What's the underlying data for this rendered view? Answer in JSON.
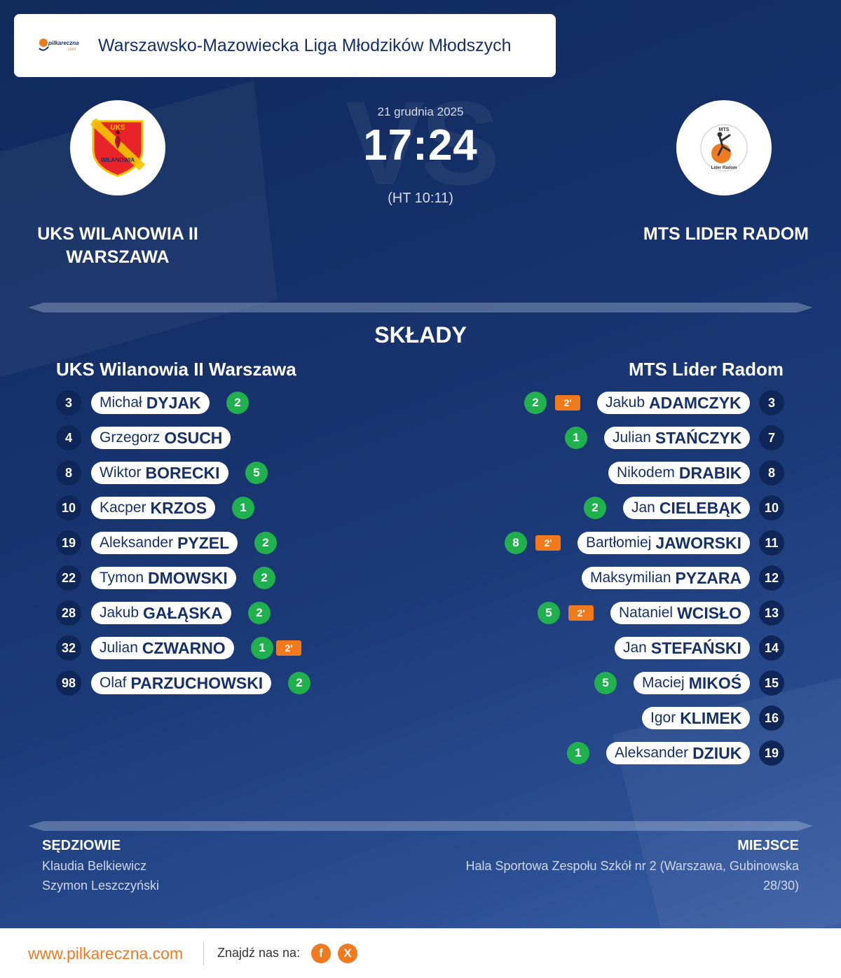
{
  "header": {
    "logo_text": "pilkareczna.com",
    "league": "Warszawsko-Mazowiecka Liga Młodzików Młodszych"
  },
  "match": {
    "date": "21 grudnia 2025",
    "score": "17:24",
    "halftime": "(HT 10:11)",
    "bg_vs": "VS"
  },
  "home": {
    "name_line1": "UKS WILANOWIA II",
    "name_line2": "WARSZAWA",
    "logo_text_top": "UKS",
    "logo_text_bottom": "WILANOWIA",
    "squad_title": "UKS Wilanowia II Warszawa",
    "players": [
      {
        "number": "3",
        "first": "Michał",
        "last": "DYJAK",
        "goals": "2",
        "penalty": ""
      },
      {
        "number": "4",
        "first": "Grzegorz",
        "last": "OSUCH",
        "goals": "",
        "penalty": ""
      },
      {
        "number": "8",
        "first": "Wiktor",
        "last": "BORECKI",
        "goals": "5",
        "penalty": ""
      },
      {
        "number": "10",
        "first": "Kacper",
        "last": "KRZOS",
        "goals": "1",
        "penalty": ""
      },
      {
        "number": "19",
        "first": "Aleksander",
        "last": "PYZEL",
        "goals": "2",
        "penalty": ""
      },
      {
        "number": "22",
        "first": "Tymon",
        "last": "DMOWSKI",
        "goals": "2",
        "penalty": ""
      },
      {
        "number": "28",
        "first": "Jakub",
        "last": "GAŁĄSKA",
        "goals": "2",
        "penalty": ""
      },
      {
        "number": "32",
        "first": "Julian",
        "last": "CZWARNO",
        "goals": "1",
        "penalty": "2'"
      },
      {
        "number": "98",
        "first": "Olaf",
        "last": "PARZUCHOWSKI",
        "goals": "2",
        "penalty": ""
      }
    ]
  },
  "away": {
    "name": "MTS LIDER RADOM",
    "logo_text_top": "MTS",
    "logo_text_bottom": "Lider Radom",
    "squad_title": "MTS Lider Radom",
    "players": [
      {
        "number": "3",
        "first": "Jakub",
        "last": "ADAMCZYK",
        "goals": "2",
        "penalty": "2'"
      },
      {
        "number": "7",
        "first": "Julian",
        "last": "STAŃCZYK",
        "goals": "1",
        "penalty": ""
      },
      {
        "number": "8",
        "first": "Nikodem",
        "last": "DRABIK",
        "goals": "",
        "penalty": ""
      },
      {
        "number": "10",
        "first": "Jan",
        "last": "CIELEBĄK",
        "goals": "2",
        "penalty": ""
      },
      {
        "number": "11",
        "first": "Bartłomiej",
        "last": "JAWORSKI",
        "goals": "8",
        "penalty": "2'"
      },
      {
        "number": "12",
        "first": "Maksymilian",
        "last": "PYZARA",
        "goals": "",
        "penalty": ""
      },
      {
        "number": "13",
        "first": "Nataniel",
        "last": "WCISŁO",
        "goals": "5",
        "penalty": "2'"
      },
      {
        "number": "14",
        "first": "Jan",
        "last": "STEFAŃSKI",
        "goals": "",
        "penalty": ""
      },
      {
        "number": "15",
        "first": "Maciej",
        "last": "MIKOŚ",
        "goals": "5",
        "penalty": ""
      },
      {
        "number": "16",
        "first": "Igor",
        "last": "KLIMEK",
        "goals": "",
        "penalty": ""
      },
      {
        "number": "19",
        "first": "Aleksander",
        "last": "DZIUK",
        "goals": "1",
        "penalty": ""
      }
    ]
  },
  "section_title": "SKŁADY",
  "referees": {
    "title": "SĘDZIOWIE",
    "names": [
      "Klaudia Belkiewicz",
      "Szymon Leszczyński"
    ]
  },
  "venue": {
    "title": "MIEJSCE",
    "line1": "Hala Sportowa Zespołu Szkół nr 2 (Warszawa, Gubinowska",
    "line2": "28/30)"
  },
  "footer": {
    "site": "www.pilkareczna.com",
    "find_us": "Znajdź nas na:",
    "social": [
      {
        "icon": "facebook-icon",
        "glyph": "f"
      },
      {
        "icon": "x-icon",
        "glyph": "X"
      }
    ]
  },
  "colors": {
    "accent": "#f07a1f",
    "goal": "#21b04e",
    "penalty": "#f17a1c",
    "navy": "#17306a"
  }
}
